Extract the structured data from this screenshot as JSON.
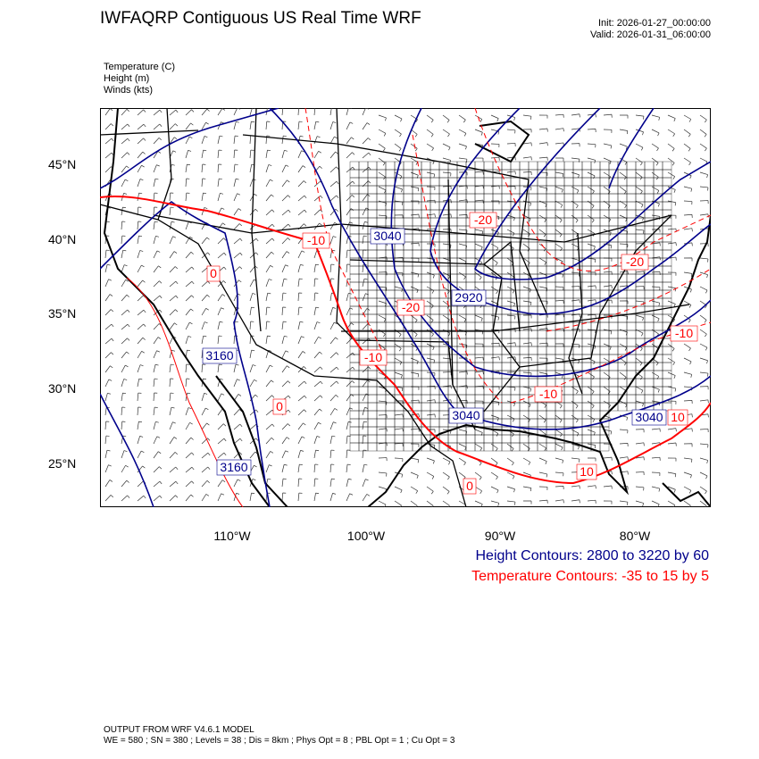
{
  "header": {
    "title": "IWFAQRP Contiguous US Real Time WRF",
    "init": "Init: 2026-01-27_00:00:00",
    "valid": "Valid: 2026-01-31_06:00:00"
  },
  "fields": [
    "Temperature   (C)",
    "Height   (m)",
    "Winds   (kts)"
  ],
  "map": {
    "lat_labels": [
      "45°N",
      "40°N",
      "35°N",
      "30°N",
      "25°N"
    ],
    "lon_labels": [
      "110°W",
      "100°W",
      "90°W",
      "80°W"
    ],
    "height_color": "#00008b",
    "temperature_color": "#ff0000",
    "height_labels": [
      "3040",
      "2920",
      "3160",
      "3160",
      "3040",
      "3040"
    ],
    "temperature_labels": [
      "-20",
      "-10",
      "0",
      "-20",
      "-10",
      "-20",
      "-10",
      "-10",
      "0",
      "0",
      "10",
      "10"
    ]
  },
  "legend": {
    "height": "Height Contours: 2800 to 3220 by 60",
    "temperature": "Temperature Contours: -35 to 15 by 5"
  },
  "footer": {
    "line1": "OUTPUT FROM WRF V4.6.1 MODEL",
    "line2": "WE = 580 ; SN = 380 ; Levels = 38 ; Dis = 8km ; Phys Opt = 8 ; PBL Opt = 1 ; Cu Opt = 3"
  }
}
